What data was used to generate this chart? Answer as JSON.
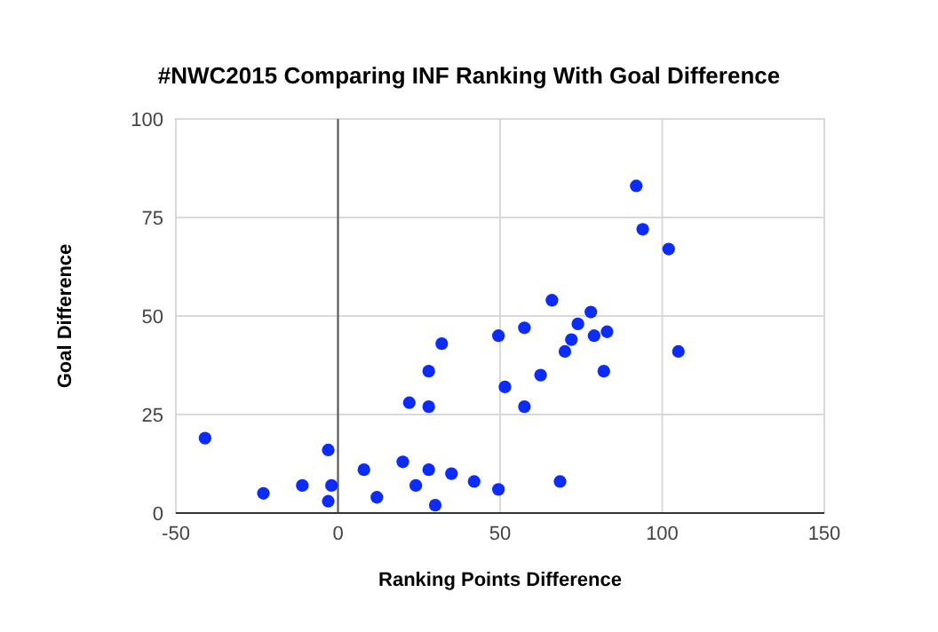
{
  "chart_data": {
    "type": "scatter",
    "title": "#NWC2015 Comparing INF Ranking With Goal Difference",
    "xlabel": "Ranking Points Difference",
    "ylabel": "Goal Difference",
    "x": [
      -41,
      -23,
      -11,
      -3,
      -3,
      -2,
      8,
      12,
      20,
      22,
      24,
      28,
      28,
      28,
      30,
      32,
      35,
      42,
      49.5,
      49.5,
      51.5,
      57.5,
      57.5,
      62.5,
      66,
      68.5,
      70,
      72,
      74,
      78,
      79,
      82,
      83,
      92,
      94,
      102,
      105
    ],
    "series": [
      {
        "color": "#0b2cfb",
        "values": [
          19,
          5,
          7,
          16,
          3,
          7,
          11,
          4,
          13,
          28,
          7,
          36,
          27,
          11,
          2,
          43,
          10,
          8,
          45,
          6,
          32,
          47,
          27,
          35,
          54,
          8,
          41,
          44,
          48,
          51,
          45,
          36,
          46,
          83,
          72,
          67,
          41
        ]
      }
    ],
    "xlim": [
      -50,
      150
    ],
    "xticks": [
      -50,
      0,
      50,
      100,
      150
    ],
    "ylim": [
      0,
      100
    ],
    "yticks": [
      0,
      25,
      50,
      75,
      100
    ],
    "grid": true,
    "marker": "circle"
  }
}
